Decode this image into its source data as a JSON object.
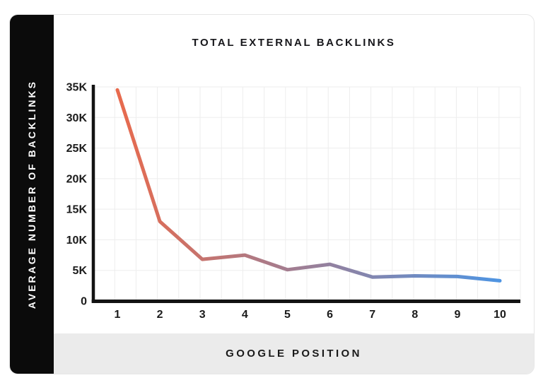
{
  "chart_data": {
    "type": "line",
    "title": "TOTAL EXTERNAL BACKLINKS",
    "xlabel": "GOOGLE POSITION",
    "ylabel": "AVERAGE NUMBER OF BACKLINKS",
    "x": [
      1,
      2,
      3,
      4,
      5,
      6,
      7,
      8,
      9,
      10
    ],
    "values": [
      34500,
      13000,
      6800,
      7500,
      5100,
      6000,
      3900,
      4100,
      4000,
      3300
    ],
    "x_tick_labels": [
      "1",
      "2",
      "3",
      "4",
      "5",
      "6",
      "7",
      "8",
      "9",
      "10"
    ],
    "y_ticks": [
      0,
      5000,
      10000,
      15000,
      20000,
      25000,
      30000,
      35000
    ],
    "y_tick_labels": [
      "0",
      "5K",
      "10K",
      "15K",
      "20K",
      "25K",
      "30K",
      "35K"
    ],
    "ylim": [
      0,
      35000
    ],
    "grid": true,
    "legend_position": "none",
    "line_gradient": [
      "#E86A4D",
      "#4E94E2"
    ]
  },
  "colors": {
    "card_bg": "#FFFFFF",
    "card_border": "#E6E6E6",
    "sidebar_bg": "#0B0B0B",
    "sidebar_text": "#FFFFFF",
    "footer_bg": "#EBEBEB",
    "grid_line": "#EDEDED",
    "axis": "#131313",
    "tick_text": "#1B1B1B",
    "title_text": "#17171B"
  }
}
